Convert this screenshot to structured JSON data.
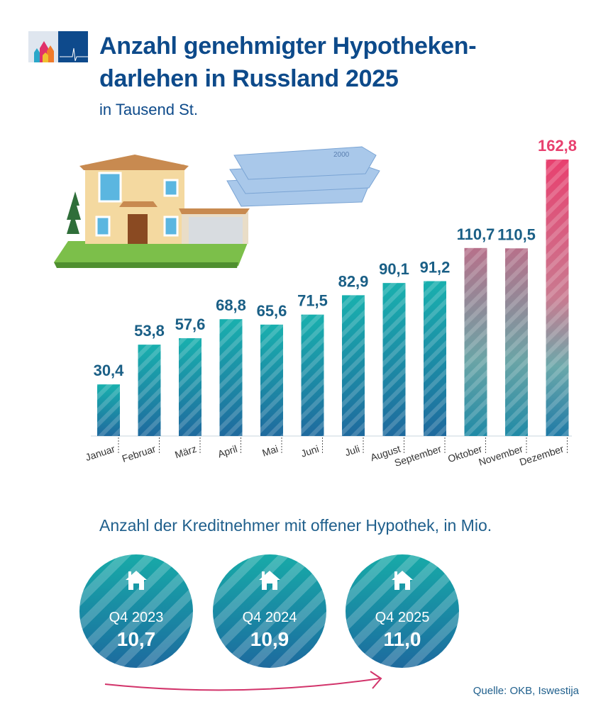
{
  "header": {
    "title_line1": "Anzahl genehmigter Hypotheken-",
    "title_line2": "darlehen in Russland 2025",
    "subtitle": "in Tausend St."
  },
  "chart_data": {
    "type": "bar",
    "title": "Anzahl genehmigter Hypothekendarlehen in Russland 2025",
    "subtitle": "in Tausend St.",
    "categories": [
      "Januar",
      "Februar",
      "März",
      "April",
      "Mai",
      "Juni",
      "Juli",
      "August",
      "September",
      "Oktober",
      "November",
      "Dezember"
    ],
    "values": [
      30.4,
      53.8,
      57.6,
      68.8,
      65.6,
      71.5,
      82.9,
      90.1,
      91.2,
      110.7,
      110.5,
      162.8
    ],
    "data_labels": [
      "30,4",
      "53,8",
      "57,6",
      "68,8",
      "65,6",
      "71,5",
      "82,9",
      "90,1",
      "91,2",
      "110,7",
      "110,5",
      "162,8"
    ],
    "ylim": [
      0,
      162.8
    ],
    "grid": false,
    "colors": {
      "base_top": "#19b0ae",
      "base_bottom": "#1f6a9e",
      "highlight": "#e8406f",
      "label": "#1a5f86"
    }
  },
  "section2": {
    "heading": "Anzahl der Kreditnehmer mit offener Hypothek, in Mio.",
    "items": [
      {
        "label": "Q4 2023",
        "value": "10,7"
      },
      {
        "label": "Q4 2024",
        "value": "10,9"
      },
      {
        "label": "Q4 2025",
        "value": "11,0"
      }
    ]
  },
  "source": "Quelle: OKB, Iswestija",
  "colors": {
    "title": "#0d4a8a",
    "arrow": "#d2336a"
  }
}
